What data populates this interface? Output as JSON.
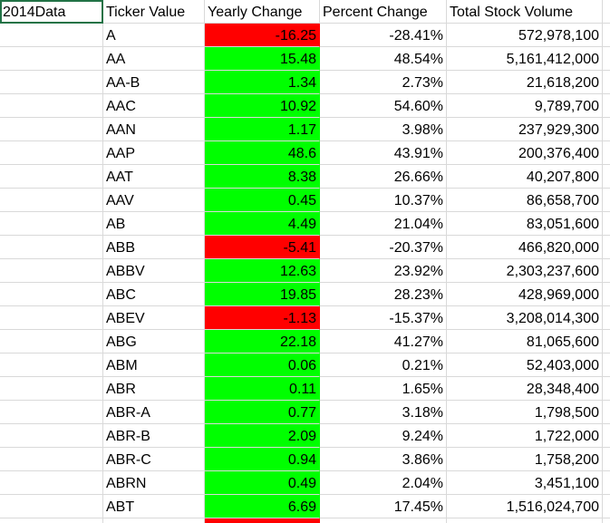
{
  "sheet": {
    "corner_label": "2014Data",
    "headers": [
      "Ticker Value",
      "Yearly Change",
      "Percent Change",
      "Total Stock Volume"
    ],
    "colors": {
      "positive": "#00ff00",
      "negative": "#ff0000",
      "selection": "#217346",
      "gridline": "#d9d9d9"
    },
    "rows": [
      {
        "ticker": "A",
        "change": "-16.25",
        "percent": "-28.41%",
        "volume": "572,978,100",
        "status": "negative"
      },
      {
        "ticker": "AA",
        "change": "15.48",
        "percent": "48.54%",
        "volume": "5,161,412,000",
        "status": "positive"
      },
      {
        "ticker": "AA-B",
        "change": "1.34",
        "percent": "2.73%",
        "volume": "21,618,200",
        "status": "positive"
      },
      {
        "ticker": "AAC",
        "change": "10.92",
        "percent": "54.60%",
        "volume": "9,789,700",
        "status": "positive"
      },
      {
        "ticker": "AAN",
        "change": "1.17",
        "percent": "3.98%",
        "volume": "237,929,300",
        "status": "positive"
      },
      {
        "ticker": "AAP",
        "change": "48.6",
        "percent": "43.91%",
        "volume": "200,376,400",
        "status": "positive"
      },
      {
        "ticker": "AAT",
        "change": "8.38",
        "percent": "26.66%",
        "volume": "40,207,800",
        "status": "positive"
      },
      {
        "ticker": "AAV",
        "change": "0.45",
        "percent": "10.37%",
        "volume": "86,658,700",
        "status": "positive"
      },
      {
        "ticker": "AB",
        "change": "4.49",
        "percent": "21.04%",
        "volume": "83,051,600",
        "status": "positive"
      },
      {
        "ticker": "ABB",
        "change": "-5.41",
        "percent": "-20.37%",
        "volume": "466,820,000",
        "status": "negative"
      },
      {
        "ticker": "ABBV",
        "change": "12.63",
        "percent": "23.92%",
        "volume": "2,303,237,600",
        "status": "positive"
      },
      {
        "ticker": "ABC",
        "change": "19.85",
        "percent": "28.23%",
        "volume": "428,969,000",
        "status": "positive"
      },
      {
        "ticker": "ABEV",
        "change": "-1.13",
        "percent": "-15.37%",
        "volume": "3,208,014,300",
        "status": "negative"
      },
      {
        "ticker": "ABG",
        "change": "22.18",
        "percent": "41.27%",
        "volume": "81,065,600",
        "status": "positive"
      },
      {
        "ticker": "ABM",
        "change": "0.06",
        "percent": "0.21%",
        "volume": "52,403,000",
        "status": "positive"
      },
      {
        "ticker": "ABR",
        "change": "0.11",
        "percent": "1.65%",
        "volume": "28,348,400",
        "status": "positive"
      },
      {
        "ticker": "ABR-A",
        "change": "0.77",
        "percent": "3.18%",
        "volume": "1,798,500",
        "status": "positive"
      },
      {
        "ticker": "ABR-B",
        "change": "2.09",
        "percent": "9.24%",
        "volume": "1,722,000",
        "status": "positive"
      },
      {
        "ticker": "ABR-C",
        "change": "0.94",
        "percent": "3.86%",
        "volume": "1,758,200",
        "status": "positive"
      },
      {
        "ticker": "ABRN",
        "change": "0.49",
        "percent": "2.04%",
        "volume": "3,451,100",
        "status": "positive"
      },
      {
        "ticker": "ABT",
        "change": "6.69",
        "percent": "17.45%",
        "volume": "1,516,024,700",
        "status": "positive"
      },
      {
        "ticker": "",
        "change": "",
        "percent": "",
        "volume": "",
        "status": "negative"
      }
    ]
  }
}
